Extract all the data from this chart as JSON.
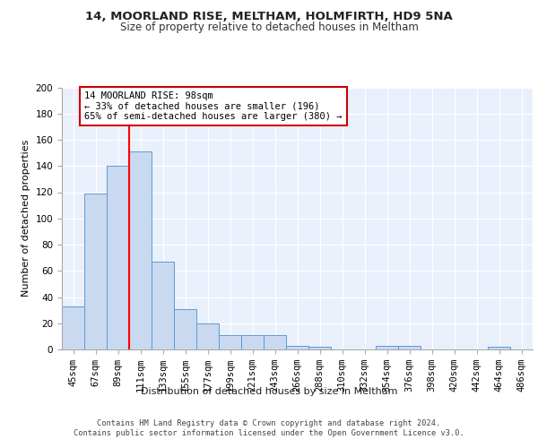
{
  "title1": "14, MOORLAND RISE, MELTHAM, HOLMFIRTH, HD9 5NA",
  "title2": "Size of property relative to detached houses in Meltham",
  "xlabel": "Distribution of detached houses by size in Meltham",
  "ylabel": "Number of detached properties",
  "categories": [
    "45sqm",
    "67sqm",
    "89sqm",
    "111sqm",
    "133sqm",
    "155sqm",
    "177sqm",
    "199sqm",
    "221sqm",
    "243sqm",
    "266sqm",
    "288sqm",
    "310sqm",
    "332sqm",
    "354sqm",
    "376sqm",
    "398sqm",
    "420sqm",
    "442sqm",
    "464sqm",
    "486sqm"
  ],
  "values": [
    33,
    119,
    140,
    151,
    67,
    31,
    20,
    11,
    11,
    11,
    3,
    2,
    0,
    0,
    3,
    3,
    0,
    0,
    0,
    2,
    0
  ],
  "bar_color": "#c9d9f0",
  "bar_edge_color": "#5b9bd5",
  "background_color": "#eaf0fb",
  "red_line_x": 2.5,
  "annotation_text": "14 MOORLAND RISE: 98sqm\n← 33% of detached houses are smaller (196)\n65% of semi-detached houses are larger (380) →",
  "annotation_box_color": "#ffffff",
  "annotation_box_edge": "#cc0000",
  "footer": "Contains HM Land Registry data © Crown copyright and database right 2024.\nContains public sector information licensed under the Open Government Licence v3.0.",
  "ylim": [
    0,
    200
  ],
  "yticks": [
    0,
    20,
    40,
    60,
    80,
    100,
    120,
    140,
    160,
    180,
    200
  ]
}
